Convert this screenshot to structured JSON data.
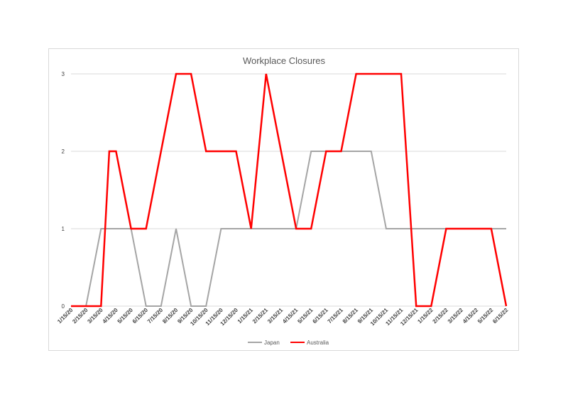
{
  "chart_data": {
    "type": "line",
    "title": "Workplace Closures",
    "xlabel": "",
    "ylabel": "",
    "ylim": [
      0,
      3
    ],
    "yticks": [
      0,
      1,
      2,
      3
    ],
    "grid": true,
    "legend_position": "bottom",
    "categories": [
      "1/15/20",
      "2/15/20",
      "3/15/20",
      "4/15/20",
      "5/15/20",
      "6/15/20",
      "7/15/20",
      "8/15/20",
      "9/15/20",
      "10/15/20",
      "11/15/20",
      "12/15/20",
      "1/15/21",
      "2/15/21",
      "3/15/21",
      "4/15/21",
      "5/15/21",
      "6/15/21",
      "7/15/21",
      "8/15/21",
      "9/15/21",
      "10/15/21",
      "11/15/21",
      "12/15/21",
      "1/15/22",
      "2/15/22",
      "3/15/22",
      "4/15/22",
      "5/15/22",
      "6/15/22"
    ],
    "series": [
      {
        "name": "Japan",
        "color": "#a5a5a5",
        "points": [
          {
            "x": "1/15/20",
            "y": 0
          },
          {
            "x": "2/15/20",
            "y": 0
          },
          {
            "x": "3/15/20",
            "y": 1
          },
          {
            "x": "4/15/20",
            "y": 1
          },
          {
            "x": "5/15/20",
            "y": 1
          },
          {
            "x": "6/15/20",
            "y": 0
          },
          {
            "x": "7/15/20",
            "y": 0
          },
          {
            "x": "8/15/20",
            "y": 1
          },
          {
            "x": "9/15/20",
            "y": 0
          },
          {
            "x": "10/15/20",
            "y": 0
          },
          {
            "x": "11/15/20",
            "y": 1
          },
          {
            "x": "12/15/20",
            "y": 1
          },
          {
            "x": "1/15/21",
            "y": 1
          },
          {
            "x": "2/15/21",
            "y": 1
          },
          {
            "x": "3/15/21",
            "y": 1
          },
          {
            "x": "4/15/21",
            "y": 1
          },
          {
            "x": "5/15/21",
            "y": 2
          },
          {
            "x": "6/15/21",
            "y": 2
          },
          {
            "x": "7/15/21",
            "y": 2
          },
          {
            "x": "8/15/21",
            "y": 2
          },
          {
            "x": "9/15/21",
            "y": 2
          },
          {
            "x": "10/15/21",
            "y": 1
          },
          {
            "x": "11/15/21",
            "y": 1
          },
          {
            "x": "12/15/21",
            "y": 1
          },
          {
            "x": "1/15/22",
            "y": 1
          },
          {
            "x": "2/15/22",
            "y": 1
          },
          {
            "x": "3/15/22",
            "y": 1
          },
          {
            "x": "4/15/22",
            "y": 1
          },
          {
            "x": "5/15/22",
            "y": 1
          },
          {
            "x": "6/15/22",
            "y": 1
          }
        ]
      },
      {
        "name": "Australia",
        "color": "#ff0000",
        "points": [
          {
            "x": "1/15/20",
            "y": 0
          },
          {
            "x": "2/15/20",
            "y": 0
          },
          {
            "x": "3/15/20",
            "y": 0
          },
          {
            "x": "3/15/20",
            "y": 2,
            "at": 0.55
          },
          {
            "x": "4/15/20",
            "y": 2
          },
          {
            "x": "5/15/20",
            "y": 1
          },
          {
            "x": "6/15/20",
            "y": 1
          },
          {
            "x": "7/15/20",
            "y": 2
          },
          {
            "x": "8/15/20",
            "y": 3
          },
          {
            "x": "9/15/20",
            "y": 3
          },
          {
            "x": "10/15/20",
            "y": 2
          },
          {
            "x": "11/15/20",
            "y": 2
          },
          {
            "x": "12/15/20",
            "y": 2
          },
          {
            "x": "1/15/21",
            "y": 1
          },
          {
            "x": "2/15/21",
            "y": 3
          },
          {
            "x": "3/15/21",
            "y": 2
          },
          {
            "x": "4/15/21",
            "y": 1
          },
          {
            "x": "5/15/21",
            "y": 1
          },
          {
            "x": "6/15/21",
            "y": 2
          },
          {
            "x": "7/15/21",
            "y": 2
          },
          {
            "x": "8/15/21",
            "y": 3
          },
          {
            "x": "9/15/21",
            "y": 3
          },
          {
            "x": "10/15/21",
            "y": 3
          },
          {
            "x": "11/15/21",
            "y": 3
          },
          {
            "x": "12/15/21",
            "y": 0
          },
          {
            "x": "1/15/22",
            "y": 0
          },
          {
            "x": "2/15/22",
            "y": 1
          },
          {
            "x": "3/15/22",
            "y": 1
          },
          {
            "x": "4/15/22",
            "y": 1
          },
          {
            "x": "5/15/22",
            "y": 1
          },
          {
            "x": "6/15/22",
            "y": 0
          }
        ]
      }
    ],
    "gridline_color": "#d9d9d9"
  }
}
